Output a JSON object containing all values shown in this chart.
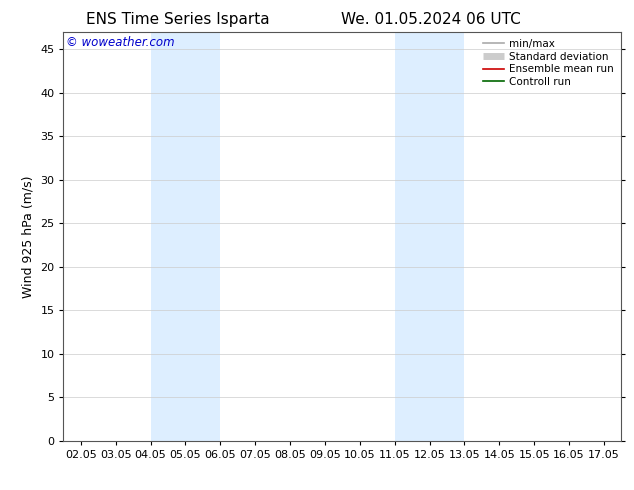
{
  "title_left": "ENS Time Series Isparta",
  "title_right": "We. 01.05.2024 06 UTC",
  "ylabel": "Wind 925 hPa (m/s)",
  "watermark": "© woweather.com",
  "xlim": [
    1.5,
    17.5
  ],
  "ylim": [
    0,
    47
  ],
  "yticks": [
    0,
    5,
    10,
    15,
    20,
    25,
    30,
    35,
    40,
    45
  ],
  "xtick_labels": [
    "02.05",
    "03.05",
    "04.05",
    "05.05",
    "06.05",
    "07.05",
    "08.05",
    "09.05",
    "10.05",
    "11.05",
    "12.05",
    "13.05",
    "14.05",
    "15.05",
    "16.05",
    "17.05"
  ],
  "xtick_positions": [
    2,
    3,
    4,
    5,
    6,
    7,
    8,
    9,
    10,
    11,
    12,
    13,
    14,
    15,
    16,
    17
  ],
  "shaded_bands": [
    {
      "x_start": 4.0,
      "x_end": 6.0
    },
    {
      "x_start": 11.0,
      "x_end": 13.0
    }
  ],
  "shaded_color": "#ddeeff",
  "background_color": "#ffffff",
  "grid_color": "#cccccc",
  "legend_entries": [
    {
      "label": "min/max",
      "color": "#aaaaaa",
      "lw": 1.2,
      "style": "minmax"
    },
    {
      "label": "Standard deviation",
      "color": "#cccccc",
      "lw": 5,
      "style": "std"
    },
    {
      "label": "Ensemble mean run",
      "color": "#cc0000",
      "lw": 1.2,
      "style": "line"
    },
    {
      "label": "Controll run",
      "color": "#006600",
      "lw": 1.2,
      "style": "line"
    }
  ],
  "title_fontsize": 11,
  "tick_fontsize": 8,
  "ylabel_fontsize": 9,
  "watermark_color": "#0000cc",
  "watermark_fontsize": 8.5
}
